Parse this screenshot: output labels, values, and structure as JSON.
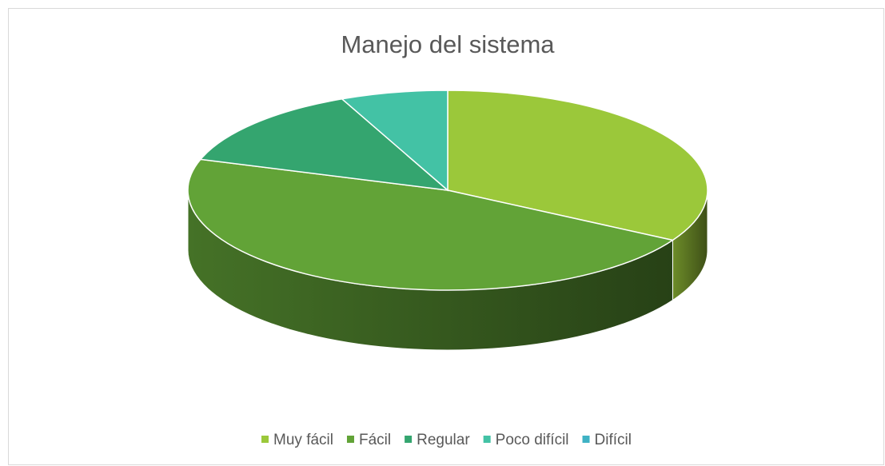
{
  "chart_data": {
    "type": "pie",
    "title": "Manejo del sistema",
    "categories": [
      "Muy fácil",
      "Fácil",
      "Regular",
      "Poco difícil",
      "Difícil"
    ],
    "values": [
      5,
      7,
      2,
      1,
      0
    ],
    "colors": [
      "#9bc83a",
      "#62a337",
      "#34a56f",
      "#43c2a5",
      "#3fb2c4"
    ],
    "three_d": true,
    "legend": "bottom"
  }
}
